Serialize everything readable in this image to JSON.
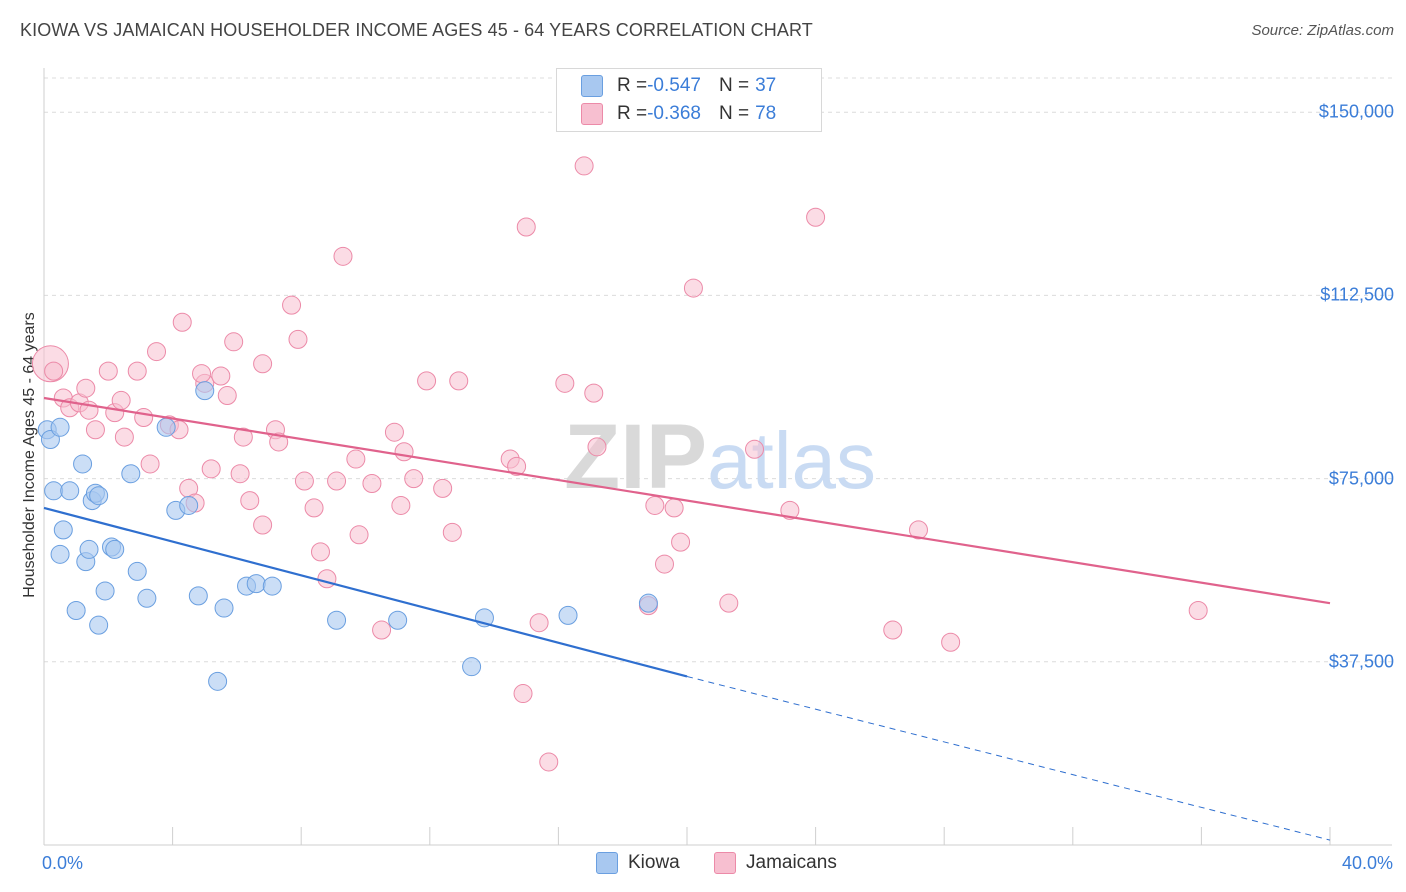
{
  "title": "KIOWA VS JAMAICAN HOUSEHOLDER INCOME AGES 45 - 64 YEARS CORRELATION CHART",
  "source": "Source: ZipAtlas.com",
  "legend": {
    "rows": [
      {
        "r_label": "R = ",
        "r_value": "-0.547",
        "n_label": "N = ",
        "n_value": "37"
      },
      {
        "r_label": "R = ",
        "r_value": "-0.368",
        "n_label": "N = ",
        "n_value": "78"
      }
    ]
  },
  "bottom_legend": [
    "Kiowa",
    "Jamaicans"
  ],
  "colors": {
    "kiowa_fill": "#a8c8f0",
    "kiowa_stroke": "#6a9fe0",
    "kiowa_line": "#2f6fcf",
    "jam_fill": "#f7bfd0",
    "jam_stroke": "#ec8aa8",
    "jam_line": "#e0628c",
    "tick_text": "#3b7dd8"
  },
  "chart_data": {
    "type": "scatter",
    "title": "KIOWA VS JAMAICAN HOUSEHOLDER INCOME AGES 45 - 64 YEARS CORRELATION CHART",
    "xlabel": "",
    "ylabel": "Householder Income Ages 45 - 64 years",
    "xlim": [
      0,
      40
    ],
    "ylim": [
      0,
      157000
    ],
    "x_tick_labels": [
      "0.0%",
      "40.0%"
    ],
    "y_ticks": [
      37500,
      75000,
      112500,
      150000
    ],
    "y_tick_labels": [
      "$37,500",
      "$75,000",
      "$112,500",
      "$150,000"
    ],
    "grid": true,
    "legend_position": "top-center",
    "watermark": "ZIPatlas",
    "series": [
      {
        "name": "Kiowa",
        "r": -0.547,
        "n": 37,
        "trend": {
          "x0": 0,
          "y0": 69000,
          "x1": 20,
          "y1": 34500,
          "dashed_to_x": 40,
          "dashed_to_y": 1000
        },
        "points": [
          [
            0.1,
            85000
          ],
          [
            0.2,
            83000
          ],
          [
            0.5,
            85500
          ],
          [
            0.3,
            72500
          ],
          [
            0.8,
            72500
          ],
          [
            1.2,
            78000
          ],
          [
            1.5,
            70500
          ],
          [
            1.6,
            72000
          ],
          [
            1.7,
            71500
          ],
          [
            0.6,
            64500
          ],
          [
            0.5,
            59500
          ],
          [
            1.3,
            58000
          ],
          [
            1.4,
            60500
          ],
          [
            2.1,
            61000
          ],
          [
            2.2,
            60500
          ],
          [
            1.9,
            52000
          ],
          [
            2.9,
            56000
          ],
          [
            1.0,
            48000
          ],
          [
            1.7,
            45000
          ],
          [
            3.2,
            50500
          ],
          [
            2.7,
            76000
          ],
          [
            3.8,
            85500
          ],
          [
            4.1,
            68500
          ],
          [
            4.5,
            69500
          ],
          [
            5.0,
            93000
          ],
          [
            4.8,
            51000
          ],
          [
            5.6,
            48500
          ],
          [
            6.3,
            53000
          ],
          [
            6.6,
            53500
          ],
          [
            7.1,
            53000
          ],
          [
            9.1,
            46000
          ],
          [
            11.0,
            46000
          ],
          [
            13.7,
            46500
          ],
          [
            16.3,
            47000
          ],
          [
            18.8,
            49500
          ],
          [
            13.3,
            36500
          ],
          [
            5.4,
            33500
          ]
        ]
      },
      {
        "name": "Jamaicans",
        "r": -0.368,
        "n": 78,
        "trend": {
          "x0": 0,
          "y0": 91500,
          "x1": 40,
          "y1": 49500
        },
        "points": [
          [
            0.2,
            98500
          ],
          [
            0.3,
            97000
          ],
          [
            0.6,
            91500
          ],
          [
            0.8,
            89500
          ],
          [
            1.1,
            90500
          ],
          [
            1.3,
            93500
          ],
          [
            1.4,
            89000
          ],
          [
            1.6,
            85000
          ],
          [
            2.0,
            97000
          ],
          [
            2.2,
            88500
          ],
          [
            2.4,
            91000
          ],
          [
            2.5,
            83500
          ],
          [
            2.9,
            97000
          ],
          [
            3.1,
            87500
          ],
          [
            3.3,
            78000
          ],
          [
            3.5,
            101000
          ],
          [
            3.9,
            86000
          ],
          [
            4.2,
            85000
          ],
          [
            4.3,
            107000
          ],
          [
            4.5,
            73000
          ],
          [
            4.7,
            70000
          ],
          [
            5.0,
            94500
          ],
          [
            5.2,
            77000
          ],
          [
            5.5,
            96000
          ],
          [
            5.7,
            92000
          ],
          [
            5.9,
            103000
          ],
          [
            6.1,
            76000
          ],
          [
            6.2,
            83500
          ],
          [
            6.4,
            70500
          ],
          [
            6.8,
            65500
          ],
          [
            6.8,
            98500
          ],
          [
            7.2,
            85000
          ],
          [
            7.3,
            82500
          ],
          [
            7.7,
            110500
          ],
          [
            7.9,
            103500
          ],
          [
            8.1,
            74500
          ],
          [
            8.4,
            69000
          ],
          [
            8.6,
            60000
          ],
          [
            8.8,
            54500
          ],
          [
            9.1,
            74500
          ],
          [
            9.3,
            120500
          ],
          [
            9.7,
            79000
          ],
          [
            9.8,
            63500
          ],
          [
            10.2,
            74000
          ],
          [
            10.5,
            44000
          ],
          [
            10.9,
            84500
          ],
          [
            11.1,
            69500
          ],
          [
            11.2,
            80500
          ],
          [
            11.5,
            75000
          ],
          [
            11.9,
            95000
          ],
          [
            12.4,
            73000
          ],
          [
            12.7,
            64000
          ],
          [
            12.9,
            95000
          ],
          [
            14.5,
            79000
          ],
          [
            14.7,
            77500
          ],
          [
            14.9,
            31000
          ],
          [
            15.0,
            126500
          ],
          [
            15.4,
            45500
          ],
          [
            15.7,
            17000
          ],
          [
            16.2,
            94500
          ],
          [
            16.8,
            139000
          ],
          [
            17.1,
            92500
          ],
          [
            17.2,
            81500
          ],
          [
            18.8,
            49000
          ],
          [
            19.0,
            69500
          ],
          [
            19.3,
            57500
          ],
          [
            19.6,
            69000
          ],
          [
            19.8,
            62000
          ],
          [
            20.2,
            114000
          ],
          [
            21.3,
            49500
          ],
          [
            22.1,
            81000
          ],
          [
            23.2,
            68500
          ],
          [
            24.0,
            128500
          ],
          [
            26.4,
            44000
          ],
          [
            27.2,
            64500
          ],
          [
            28.2,
            41500
          ],
          [
            35.9,
            48000
          ],
          [
            4.9,
            96500
          ]
        ]
      }
    ]
  }
}
